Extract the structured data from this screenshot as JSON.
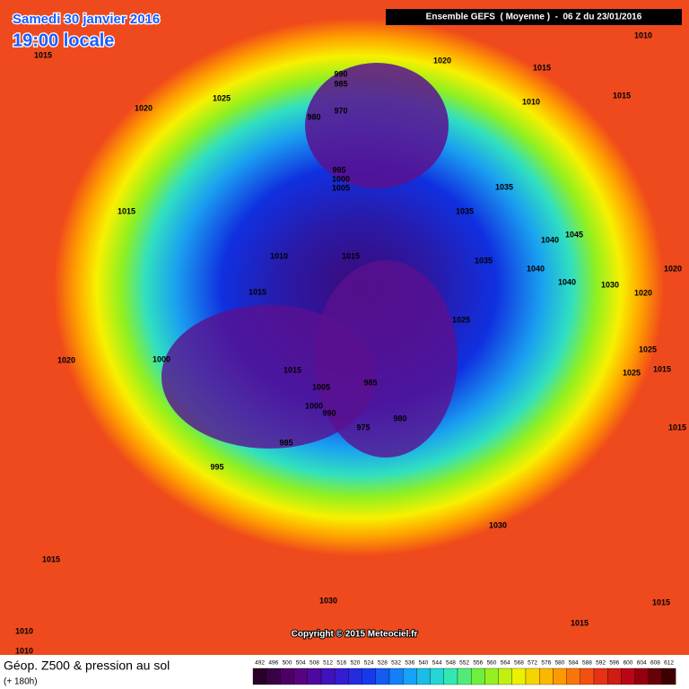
{
  "header": {
    "date": "Samedi 30 janvier 2016",
    "time": "19:00 locale",
    "model": "Ensemble GEFS  ( Moyenne )  -  06 Z du 23/01/2016"
  },
  "copyright": "Copyright © 2015 Meteociel.fr",
  "footer": {
    "title": "Géop. Z500 & pression au sol",
    "lead": "(+ 180h)"
  },
  "scale": [
    492,
    496,
    500,
    504,
    508,
    512,
    516,
    520,
    524,
    528,
    532,
    536,
    540,
    544,
    548,
    552,
    556,
    560,
    564,
    568,
    572,
    576,
    580,
    584,
    588,
    592,
    596,
    600,
    604,
    608,
    612
  ],
  "isobar_labels": [
    1015,
    1020,
    1010,
    1015,
    1025,
    1020,
    990,
    985,
    970,
    980,
    1010,
    1015,
    995,
    1000,
    1005,
    1035,
    1035,
    1015,
    1040,
    1045,
    1010,
    1015,
    1035,
    1040,
    1040,
    1030,
    1020,
    1020,
    1015,
    1025,
    1025,
    1000,
    1020,
    1015,
    1025,
    1015,
    1005,
    985,
    1000,
    990,
    980,
    975,
    1015,
    985,
    995,
    1030,
    1015,
    1030,
    1015,
    1015,
    1010,
    1010
  ]
}
